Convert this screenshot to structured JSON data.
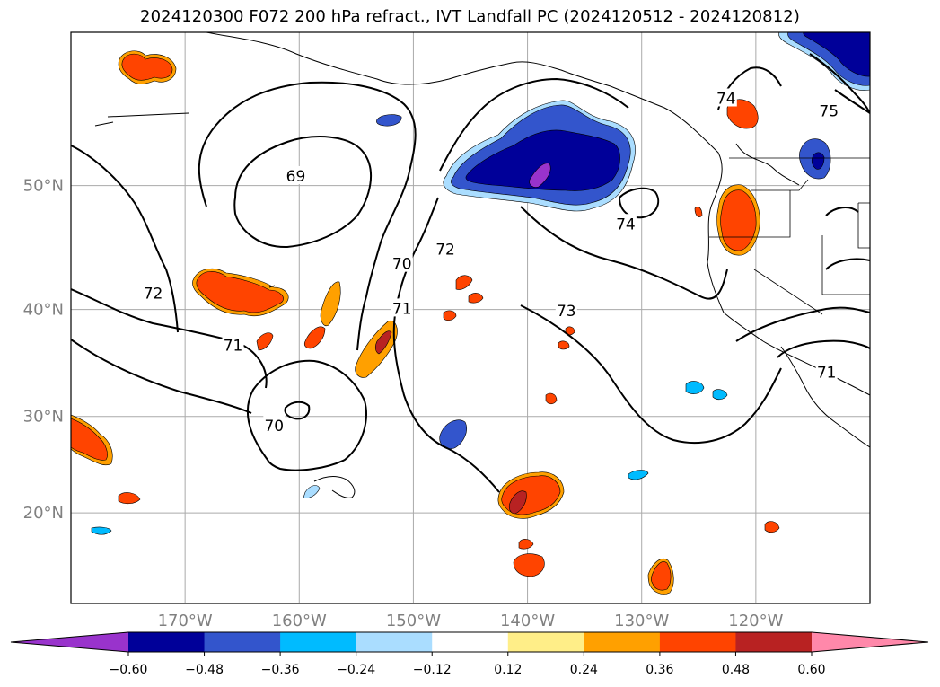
{
  "title": "2024120300 F072 200 hPa refract., IVT Landfall PC (2024120512 - 2024120812)",
  "map": {
    "lon_min": -180,
    "lon_max": -110,
    "lat_min": 10,
    "lat_max": 60,
    "grid": true,
    "lat_ticks": [
      {
        "value": 20,
        "label": "20°N"
      },
      {
        "value": 30,
        "label": "30°N"
      },
      {
        "value": 40,
        "label": "40°N"
      },
      {
        "value": 50,
        "label": "50°N"
      }
    ],
    "lon_ticks": [
      {
        "value": -170,
        "label": "170°W"
      },
      {
        "value": -160,
        "label": "160°W"
      },
      {
        "value": -150,
        "label": "150°W"
      },
      {
        "value": -140,
        "label": "140°W"
      },
      {
        "value": -130,
        "label": "130°W"
      },
      {
        "value": -120,
        "label": "120°W"
      }
    ]
  },
  "contour_labels": [
    {
      "text": "69",
      "lon": -160.3,
      "lat": 50.7
    },
    {
      "text": "70",
      "lon": -151.0,
      "lat": 43.9
    },
    {
      "text": "72",
      "lon": -147.2,
      "lat": 45.1
    },
    {
      "text": "72",
      "lon": -172.8,
      "lat": 41.4
    },
    {
      "text": "71",
      "lon": -165.8,
      "lat": 36.8
    },
    {
      "text": "71",
      "lon": -151.0,
      "lat": 40.1
    },
    {
      "text": "74",
      "lon": -131.4,
      "lat": 47.1
    },
    {
      "text": "73",
      "lon": -136.6,
      "lat": 39.9
    },
    {
      "text": "74",
      "lon": -122.6,
      "lat": 56.0
    },
    {
      "text": "75",
      "lon": -113.6,
      "lat": 55.2
    },
    {
      "text": "71",
      "lon": -113.8,
      "lat": 34.3
    },
    {
      "text": "70",
      "lon": -162.2,
      "lat": 29.1
    }
  ],
  "colorbar": {
    "levels": [
      -0.6,
      -0.48,
      -0.36,
      -0.24,
      -0.12,
      0.12,
      0.24,
      0.36,
      0.48,
      0.6
    ],
    "tick_labels": [
      "−0.60",
      "−0.48",
      "−0.36",
      "−0.24",
      "−0.12",
      "0.12",
      "0.24",
      "0.36",
      "0.48",
      "0.60"
    ],
    "colors": [
      "#9933cc",
      "#000099",
      "#3355cc",
      "#00bbff",
      "#aaddff",
      "#ffffff",
      "#ffee88",
      "#ffa000",
      "#ff4400",
      "#b82222",
      "#ff88aa"
    ],
    "extend": "both"
  }
}
